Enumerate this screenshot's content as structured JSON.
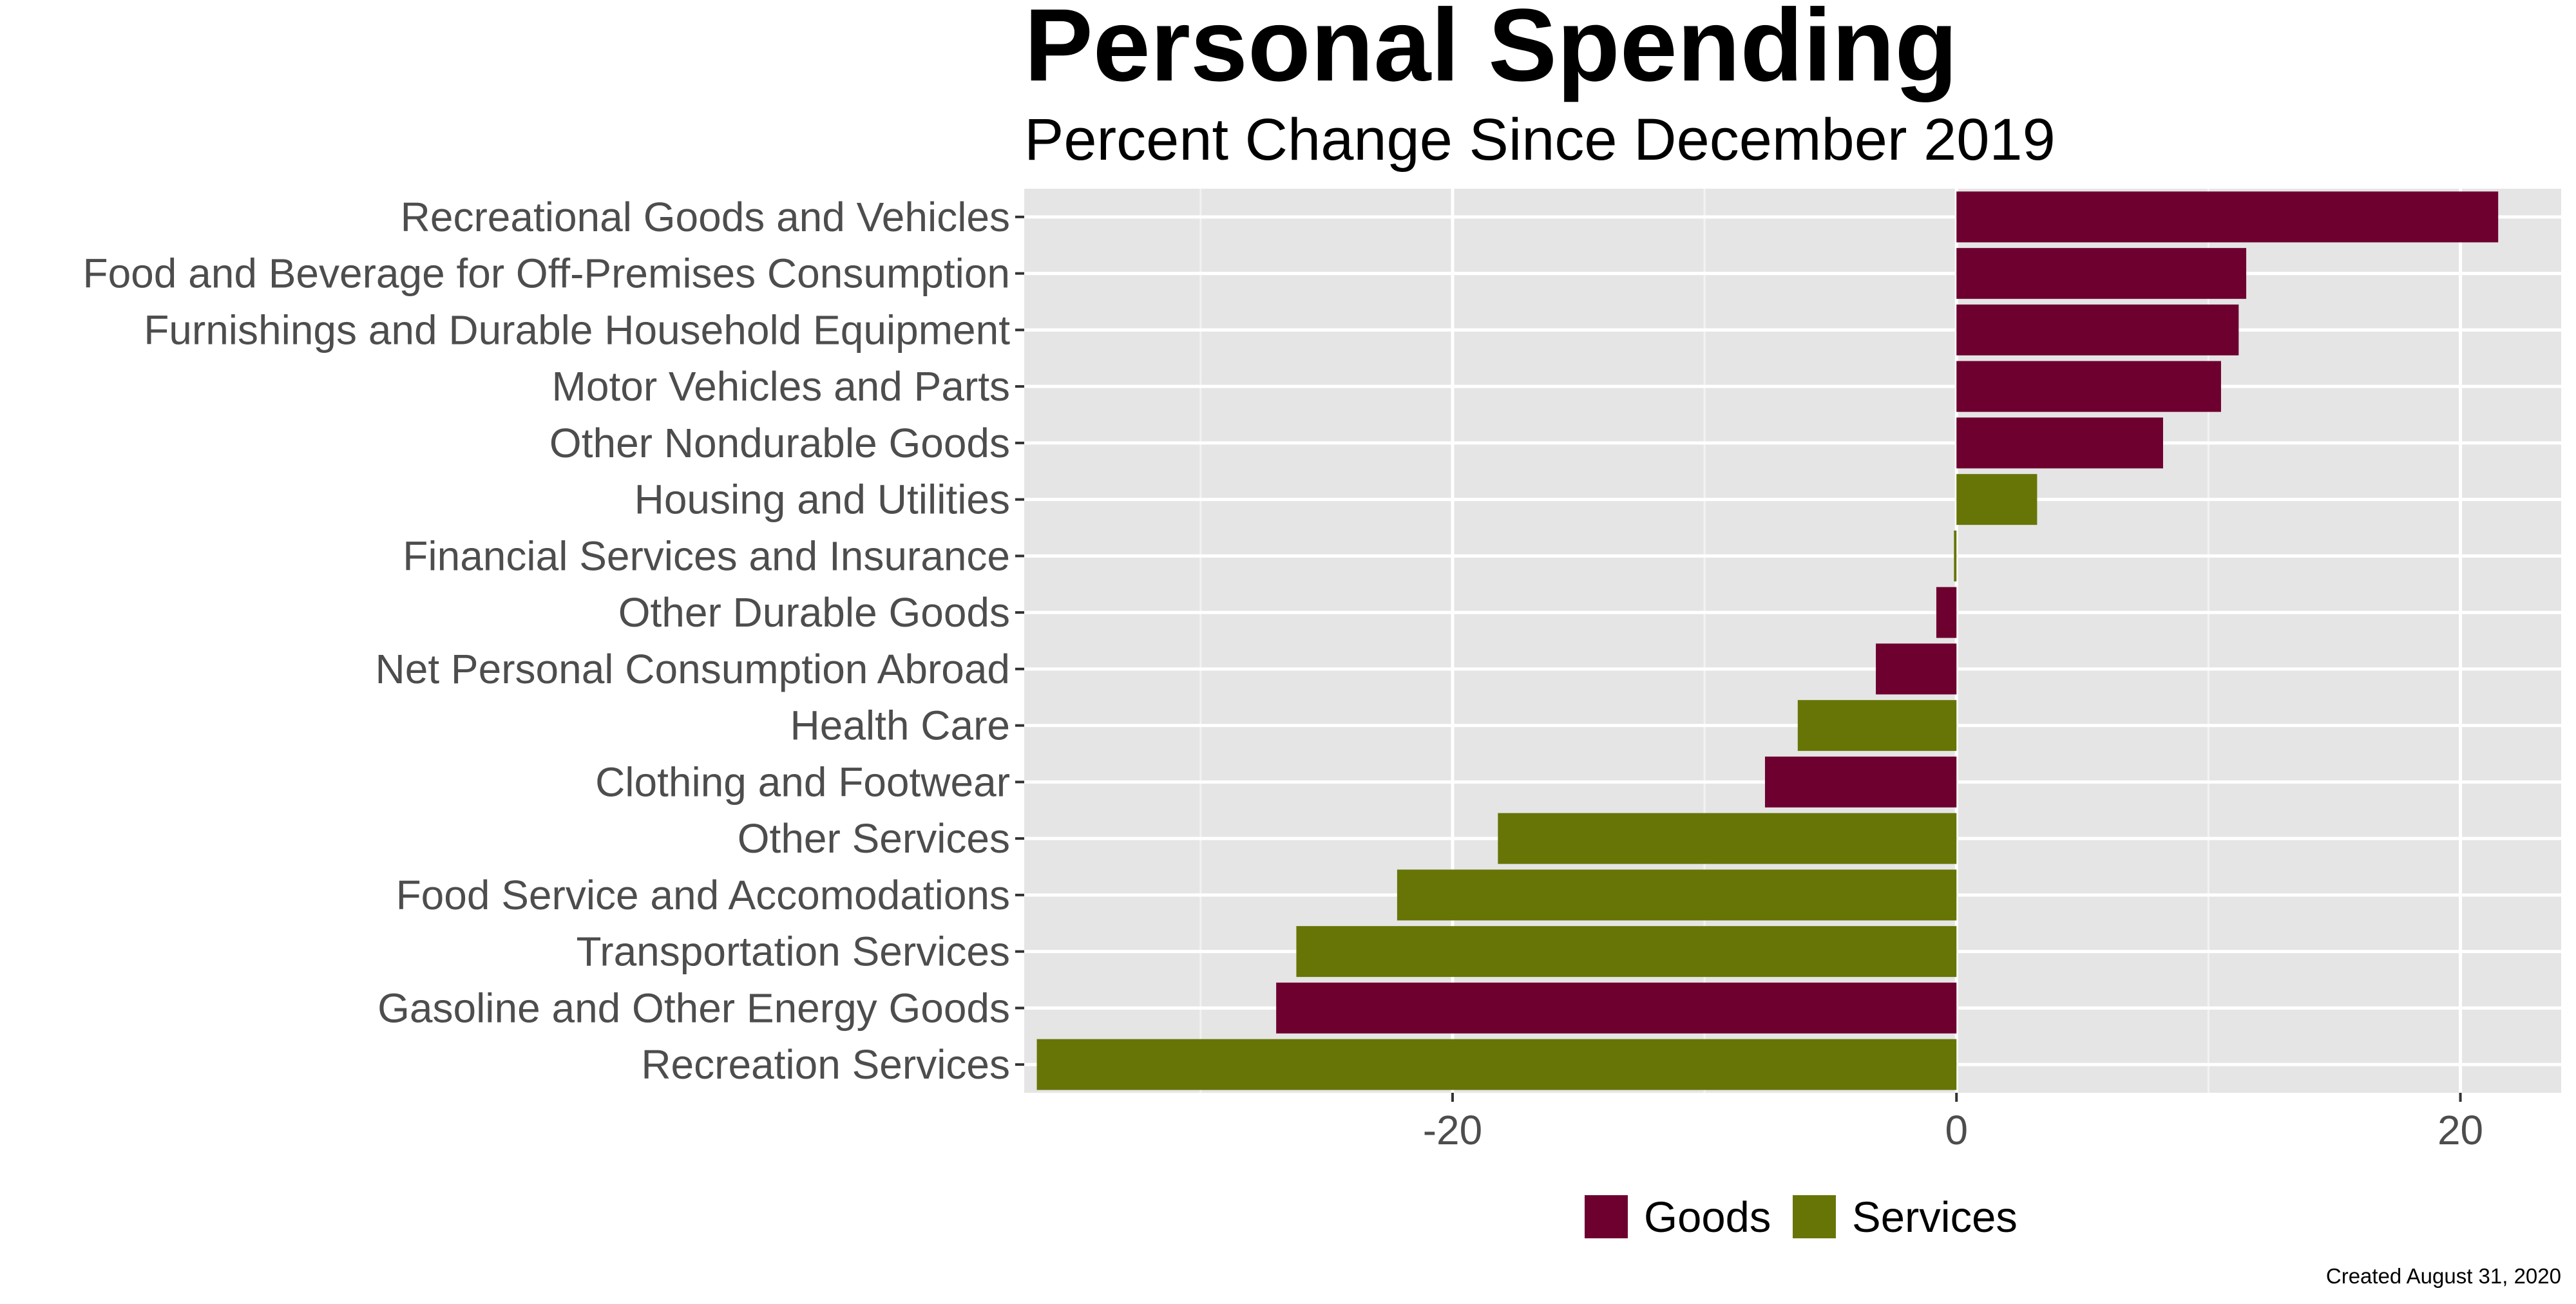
{
  "chart_data": {
    "type": "bar",
    "orientation": "horizontal",
    "title": "Personal Spending",
    "subtitle": "Percent Change Since December 2019",
    "caption": "Created August 31, 2020",
    "xlim": [
      -37,
      24
    ],
    "x_ticks": [
      -20,
      0,
      20
    ],
    "x_tick_labels": [
      "-20",
      "0",
      "20"
    ],
    "minor_grid": [
      -30,
      -10,
      10
    ],
    "grid": true,
    "legend_position": "bottom",
    "legend": [
      {
        "key": "goods",
        "label": "Goods",
        "color": "#6e0030"
      },
      {
        "key": "services",
        "label": "Services",
        "color": "#677506"
      }
    ],
    "categories": [
      "Recreational Goods and Vehicles",
      "Food and Beverage for Off-Premises Consumption",
      "Furnishings and Durable Household Equipment",
      "Motor Vehicles and Parts",
      "Other Nondurable Goods",
      "Housing and Utilities",
      "Financial Services and Insurance",
      "Other Durable Goods",
      "Net Personal Consumption Abroad",
      "Health Care",
      "Clothing and Footwear",
      "Other Services",
      "Food Service and Accomodations",
      "Transportation Services",
      "Gasoline and Other Energy Goods",
      "Recreation Services"
    ],
    "values": [
      21.5,
      11.5,
      11.2,
      10.5,
      8.2,
      3.2,
      -0.1,
      -0.8,
      -3.2,
      -6.3,
      -7.6,
      -18.2,
      -22.2,
      -26.2,
      -27.0,
      -36.5
    ],
    "groups": [
      "goods",
      "goods",
      "goods",
      "goods",
      "goods",
      "services",
      "services",
      "goods",
      "goods",
      "services",
      "goods",
      "services",
      "services",
      "services",
      "goods",
      "services"
    ]
  }
}
